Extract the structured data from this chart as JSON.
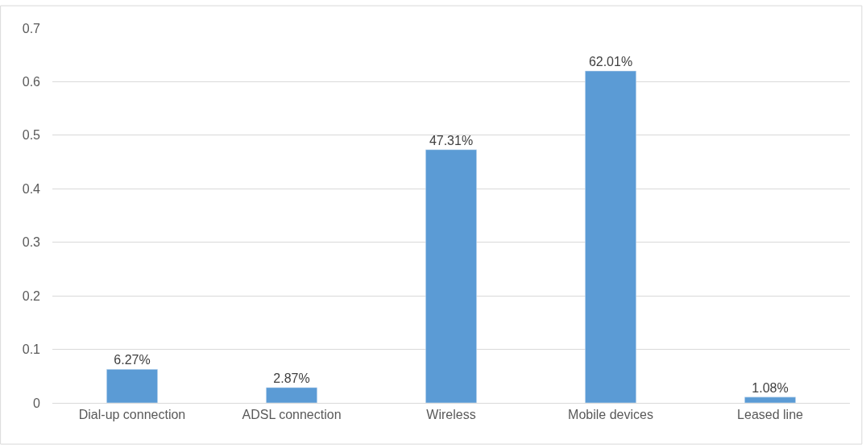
{
  "chart_data": {
    "type": "bar",
    "categories": [
      "Dial-up connection",
      "ADSL connection",
      "Wireless",
      "Mobile devices",
      "Leased line"
    ],
    "values": [
      0.0627,
      0.0287,
      0.4731,
      0.6201,
      0.0108
    ],
    "value_labels": [
      "6.27%",
      "2.87%",
      "47.31%",
      "62.01%",
      "1.08%"
    ],
    "color": "#5b9bd5",
    "ylim": [
      0,
      0.7
    ],
    "yticks": [
      0,
      0.1,
      0.2,
      0.3,
      0.4,
      0.5,
      0.6,
      0.7
    ],
    "grid": "y",
    "legend": false
  }
}
